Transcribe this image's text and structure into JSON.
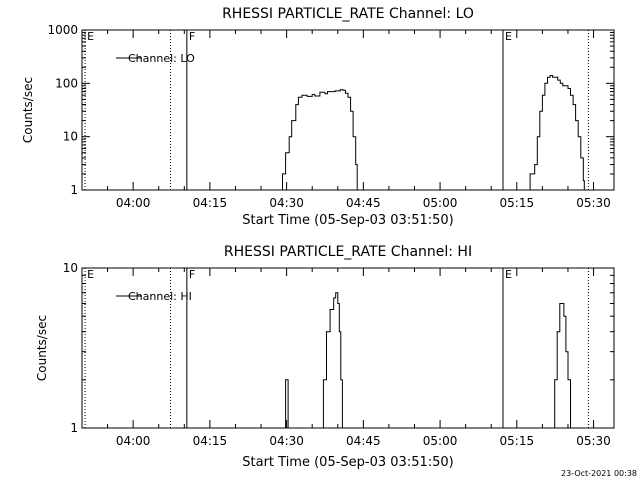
{
  "footer_timestamp": "23-Oct-2021 00:38",
  "chart_data": [
    {
      "type": "line",
      "title": "RHESSI PARTICLE_RATE Channel: LO",
      "xlabel": "Start Time (05-Sep-03 03:51:50)",
      "ylabel": "Counts/sec",
      "yscale": "log",
      "ylim": [
        1,
        1000
      ],
      "xlim_minutes": [
        -10.0,
        94.0
      ],
      "xticks": [
        {
          "minute": 0,
          "label": "04:00"
        },
        {
          "minute": 15,
          "label": "04:15"
        },
        {
          "minute": 30,
          "label": "04:30"
        },
        {
          "minute": 45,
          "label": "04:45"
        },
        {
          "minute": 60,
          "label": "05:00"
        },
        {
          "minute": 75,
          "label": "05:15"
        },
        {
          "minute": 90,
          "label": "05:30"
        }
      ],
      "yticks": [
        {
          "value": 1,
          "label": "1"
        },
        {
          "value": 10,
          "label": "10"
        },
        {
          "value": 100,
          "label": "100"
        },
        {
          "value": 1000,
          "label": "1000"
        }
      ],
      "legend": {
        "entry": "Channel: LO",
        "position": "top-left"
      },
      "markers": [
        {
          "minute": -9.4,
          "label": "E",
          "style": "dotted"
        },
        {
          "minute": 7.3,
          "label": "",
          "style": "dotted"
        },
        {
          "minute": 10.5,
          "label": "F",
          "style": "solid"
        },
        {
          "minute": 72.3,
          "label": "E",
          "style": "solid"
        },
        {
          "minute": 89.0,
          "label": "",
          "style": "dotted"
        }
      ],
      "series": [
        {
          "segments": [
            [
              [
                28.8,
                1
              ],
              [
                29.2,
                2
              ],
              [
                29.8,
                5
              ],
              [
                30.5,
                10
              ],
              [
                31.0,
                20
              ],
              [
                31.8,
                40
              ],
              [
                32.3,
                55
              ],
              [
                33.0,
                60
              ],
              [
                34.0,
                57
              ],
              [
                35.0,
                62
              ],
              [
                35.5,
                58
              ],
              [
                36.5,
                68
              ],
              [
                37.5,
                64
              ],
              [
                38.0,
                70
              ],
              [
                39.5,
                72
              ],
              [
                40.5,
                76
              ],
              [
                41.0,
                74
              ],
              [
                41.5,
                65
              ],
              [
                42.0,
                55
              ],
              [
                42.5,
                30
              ],
              [
                43.0,
                10
              ],
              [
                43.5,
                3
              ],
              [
                43.8,
                1
              ]
            ],
            [
              [
                77.5,
                1
              ],
              [
                77.6,
                2
              ],
              [
                78.0,
                2
              ],
              [
                78.5,
                3
              ],
              [
                79.0,
                10
              ],
              [
                79.5,
                30
              ],
              [
                80.0,
                60
              ],
              [
                80.5,
                100
              ],
              [
                81.0,
                130
              ],
              [
                81.5,
                140
              ],
              [
                82.0,
                130
              ],
              [
                83.0,
                115
              ],
              [
                83.5,
                100
              ],
              [
                84.0,
                90
              ],
              [
                85.0,
                80
              ],
              [
                85.5,
                60
              ],
              [
                86.0,
                40
              ],
              [
                86.5,
                20
              ],
              [
                87.0,
                10
              ],
              [
                87.5,
                4
              ],
              [
                88.0,
                1.5
              ],
              [
                88.2,
                1
              ]
            ]
          ]
        }
      ]
    },
    {
      "type": "line",
      "title": "RHESSI PARTICLE_RATE Channel: HI",
      "xlabel": "Start Time (05-Sep-03 03:51:50)",
      "ylabel": "Counts/sec",
      "yscale": "log",
      "ylim": [
        1,
        10
      ],
      "xlim_minutes": [
        -10.0,
        94.0
      ],
      "xticks": [
        {
          "minute": 0,
          "label": "04:00"
        },
        {
          "minute": 15,
          "label": "04:15"
        },
        {
          "minute": 30,
          "label": "04:30"
        },
        {
          "minute": 45,
          "label": "04:45"
        },
        {
          "minute": 60,
          "label": "05:00"
        },
        {
          "minute": 75,
          "label": "05:15"
        },
        {
          "minute": 90,
          "label": "05:30"
        }
      ],
      "yticks": [
        {
          "value": 1,
          "label": "1"
        },
        {
          "value": 10,
          "label": "10"
        }
      ],
      "legend": {
        "entry": "Channel: HI",
        "position": "top-left"
      },
      "markers": [
        {
          "minute": -9.4,
          "label": "E",
          "style": "dotted"
        },
        {
          "minute": 7.3,
          "label": "",
          "style": "dotted"
        },
        {
          "minute": 10.5,
          "label": "F",
          "style": "solid"
        },
        {
          "minute": 72.3,
          "label": "E",
          "style": "solid"
        },
        {
          "minute": 89.0,
          "label": "",
          "style": "dotted"
        }
      ],
      "series": [
        {
          "segments": [
            [
              [
                29.6,
                1
              ],
              [
                29.8,
                2
              ],
              [
                30.0,
                2
              ],
              [
                30.3,
                1
              ]
            ],
            [
              [
                36.5,
                1
              ],
              [
                37.2,
                2
              ],
              [
                37.8,
                4
              ],
              [
                38.5,
                5.5
              ],
              [
                39.2,
                6.5
              ],
              [
                39.6,
                7
              ],
              [
                40.0,
                6
              ],
              [
                40.3,
                4
              ],
              [
                40.6,
                2
              ],
              [
                40.9,
                1
              ]
            ],
            [
              [
                81.8,
                1
              ],
              [
                82.4,
                2
              ],
              [
                82.9,
                4
              ],
              [
                83.4,
                6
              ],
              [
                83.8,
                6
              ],
              [
                84.2,
                5
              ],
              [
                84.6,
                3
              ],
              [
                85.0,
                2
              ],
              [
                85.5,
                1
              ]
            ]
          ]
        }
      ]
    }
  ]
}
